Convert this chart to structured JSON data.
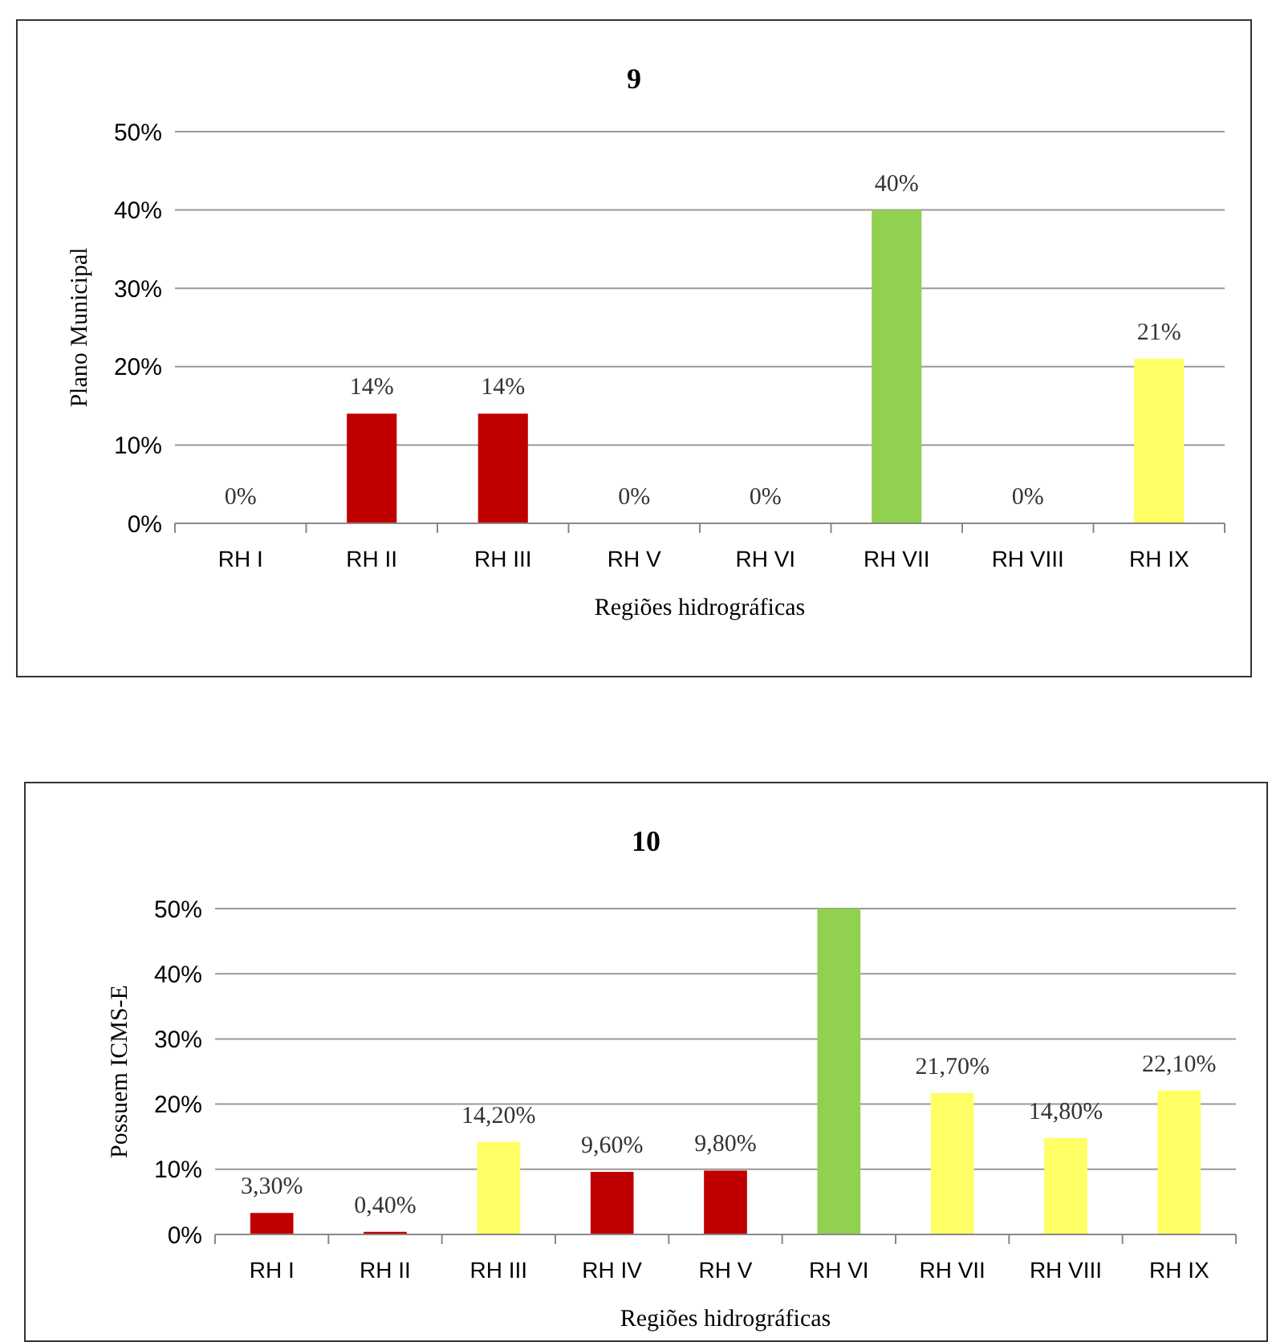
{
  "chart_data": [
    {
      "type": "bar",
      "title": "9",
      "xlabel": "Regiões hidrográficas",
      "ylabel": "Plano Municipal",
      "categories": [
        "RH I",
        "RH II",
        "RH III",
        "RH V",
        "RH VI",
        "RH VII",
        "RH VIII",
        "RH IX"
      ],
      "values": [
        0,
        14,
        14,
        0,
        0,
        40,
        0,
        21
      ],
      "colors": [
        "#c00000",
        "#c00000",
        "#c00000",
        "#c00000",
        "#c00000",
        "#92d050",
        "#c00000",
        "#ffff66"
      ],
      "value_labels": [
        "0%",
        "14%",
        "14%",
        "0%",
        "0%",
        "40%",
        "0%",
        "21%"
      ],
      "ylim": [
        0,
        50
      ],
      "yticks": [
        {
          "value": 0,
          "label": "0%"
        },
        {
          "value": 10,
          "label": "10%"
        },
        {
          "value": 20,
          "label": "20%"
        },
        {
          "value": 30,
          "label": "30%"
        },
        {
          "value": 40,
          "label": "40%"
        },
        {
          "value": 50,
          "label": "50%"
        }
      ],
      "grid": "y"
    },
    {
      "type": "bar",
      "title": "10",
      "xlabel": "Regiões hidrográficas",
      "ylabel": "Possuem ICMS-E",
      "categories": [
        "RH I",
        "RH II",
        "RH III",
        "RH IV",
        "RH V",
        "RH VI",
        "RH VII",
        "RH VIII",
        "RH IX"
      ],
      "values": [
        3.3,
        0.4,
        14.2,
        9.6,
        9.8,
        50,
        21.7,
        14.8,
        22.1
      ],
      "colors": [
        "#c00000",
        "#c00000",
        "#ffff66",
        "#c00000",
        "#c00000",
        "#92d050",
        "#ffff66",
        "#ffff66",
        "#ffff66"
      ],
      "value_labels": [
        "3,30%",
        "0,40%",
        "14,20%",
        "9,60%",
        "9,80%",
        null,
        "21,70%",
        "14,80%",
        "22,10%"
      ],
      "ylim": [
        0,
        50
      ],
      "yticks": [
        {
          "value": 0,
          "label": "0%"
        },
        {
          "value": 10,
          "label": "10%"
        },
        {
          "value": 20,
          "label": "20%"
        },
        {
          "value": 30,
          "label": "30%"
        },
        {
          "value": 40,
          "label": "40%"
        },
        {
          "value": 50,
          "label": "50%"
        }
      ],
      "grid": "y"
    }
  ]
}
